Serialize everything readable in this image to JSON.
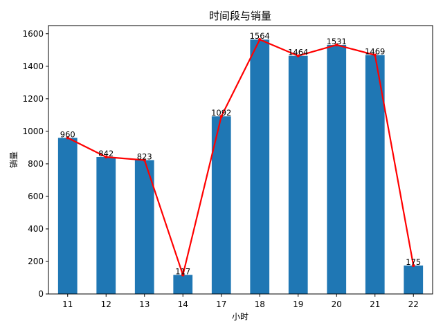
{
  "chart_data": {
    "type": "bar",
    "title": "时间段与销量",
    "xlabel": "小时",
    "ylabel": "销量",
    "categories": [
      "11",
      "12",
      "13",
      "14",
      "17",
      "18",
      "19",
      "20",
      "21",
      "22"
    ],
    "values": [
      960,
      842,
      823,
      117,
      1092,
      1564,
      1464,
      1531,
      1469,
      175
    ],
    "ylim": [
      0,
      1650
    ],
    "yticks": [
      0,
      200,
      400,
      600,
      800,
      1000,
      1200,
      1400,
      1600
    ],
    "grid": false,
    "bar_color": "#1f77b4",
    "overlay_line": {
      "type": "line",
      "color": "#ff0000",
      "marker": "point"
    },
    "data_labels": [
      "960",
      "842",
      "823",
      "117",
      "1092",
      "1564",
      "1464",
      "1531",
      "1469",
      "175"
    ]
  }
}
